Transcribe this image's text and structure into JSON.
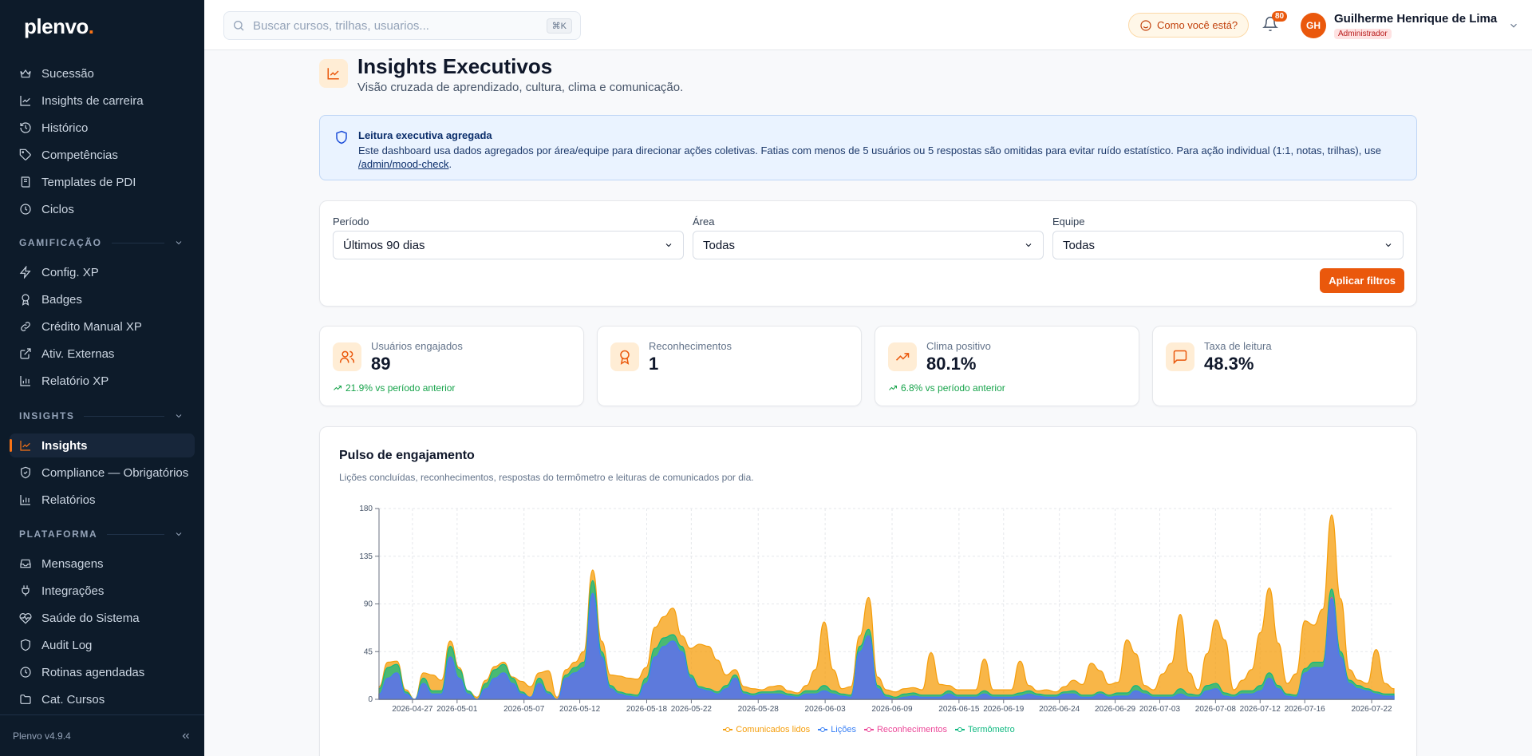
{
  "app": {
    "logo_main": "plenvo",
    "logo_dot": ".",
    "version": "Plenvo v4.9.4"
  },
  "sidebar": {
    "items_top": [
      {
        "label": "Sucessão",
        "icon": "crown-icon"
      },
      {
        "label": "Insights de carreira",
        "icon": "line-chart-icon"
      },
      {
        "label": "Histórico",
        "icon": "history-icon"
      },
      {
        "label": "Competências",
        "icon": "tag-icon"
      },
      {
        "label": "Templates de PDI",
        "icon": "book-icon"
      },
      {
        "label": "Ciclos",
        "icon": "clock-icon"
      }
    ],
    "gamificacao": {
      "title": "GAMIFICAÇÃO",
      "items": [
        {
          "label": "Config. XP",
          "icon": "zap-icon"
        },
        {
          "label": "Badges",
          "icon": "award-icon"
        },
        {
          "label": "Crédito Manual XP",
          "icon": "link-icon"
        },
        {
          "label": "Ativ. Externas",
          "icon": "external-link-icon"
        },
        {
          "label": "Relatório XP",
          "icon": "bar-chart-icon"
        }
      ]
    },
    "insights": {
      "title": "INSIGHTS",
      "items": [
        {
          "label": "Insights",
          "icon": "line-chart-icon",
          "active": true
        },
        {
          "label": "Compliance — Obrigatórios",
          "icon": "shield-check-icon"
        },
        {
          "label": "Relatórios",
          "icon": "bar-chart-icon"
        }
      ]
    },
    "plataforma": {
      "title": "PLATAFORMA",
      "items": [
        {
          "label": "Mensagens",
          "icon": "inbox-icon"
        },
        {
          "label": "Integrações",
          "icon": "plug-icon"
        },
        {
          "label": "Saúde do Sistema",
          "icon": "heart-pulse-icon"
        },
        {
          "label": "Audit Log",
          "icon": "shield-icon"
        },
        {
          "label": "Rotinas agendadas",
          "icon": "clock-icon"
        },
        {
          "label": "Cat. Cursos",
          "icon": "folder-icon"
        }
      ]
    }
  },
  "topbar": {
    "search_placeholder": "Buscar cursos, trilhas, usuarios...",
    "search_shortcut": "⌘K",
    "mood_label": "Como você está?",
    "notifications_count": "80",
    "user_initials": "GH",
    "user_name": "Guilherme Henrique de Lima",
    "user_role": "Administrador"
  },
  "page": {
    "title": "Insights Executivos",
    "subtitle": "Visão cruzada de aprendizado, cultura, clima e comunicação."
  },
  "info": {
    "title": "Leitura executiva agregada",
    "text": "Este dashboard usa dados agregados por área/equipe para direcionar ações coletivas. Fatias com menos de 5 usuários ou 5 respostas são omitidas para evitar ruído estatístico. Para ação individual (1:1, notas, trilhas), use ",
    "link": "/admin/mood-check",
    "end": "."
  },
  "filters": {
    "periodo_label": "Período",
    "periodo_value": "Últimos 90 dias",
    "area_label": "Área",
    "area_value": "Todas",
    "equipe_label": "Equipe",
    "equipe_value": "Todas",
    "apply_label": "Aplicar filtros"
  },
  "kpis": [
    {
      "label": "Usuários engajados",
      "value": "89",
      "delta": "21.9% vs período anterior",
      "icon": "users-icon"
    },
    {
      "label": "Reconhecimentos",
      "value": "1",
      "delta": "",
      "icon": "award-icon"
    },
    {
      "label": "Clima positivo",
      "value": "80.1%",
      "delta": "6.8% vs período anterior",
      "icon": "trending-up-icon"
    },
    {
      "label": "Taxa de leitura",
      "value": "48.3%",
      "delta": "",
      "icon": "message-square-icon"
    }
  ],
  "colors": {
    "accent": "#ea580c",
    "comunicados": "#f59e0b",
    "licoes": "#3b82f6",
    "reconhecimentos": "#ec4899",
    "termometro": "#10b981"
  },
  "chart_data": {
    "type": "area",
    "title": "Pulso de engajamento",
    "subtitle": "Lições concluídas, reconhecimentos, respostas do termômetro e leituras de comunicados por dia.",
    "stacked": true,
    "x_start": "2026-04-24",
    "x_end": "2026-07-24",
    "x_ticks": [
      "2026-04-27",
      "2026-05-01",
      "2026-05-07",
      "2026-05-12",
      "2026-05-18",
      "2026-05-22",
      "2026-05-28",
      "2026-06-03",
      "2026-06-09",
      "2026-06-15",
      "2026-06-19",
      "2026-06-24",
      "2026-06-29",
      "2026-07-03",
      "2026-07-08",
      "2026-07-12",
      "2026-07-16",
      "2026-07-22"
    ],
    "ylim": [
      0,
      180
    ],
    "y_ticks": [
      0,
      45,
      90,
      135,
      180
    ],
    "grid": true,
    "legend_position": "bottom-center",
    "series": [
      {
        "name": "Lições",
        "color": "#3b82f6",
        "values": [
          5,
          20,
          25,
          5,
          0,
          15,
          5,
          5,
          40,
          20,
          5,
          0,
          10,
          20,
          25,
          15,
          5,
          2,
          15,
          5,
          0,
          20,
          25,
          30,
          100,
          40,
          10,
          5,
          3,
          2,
          15,
          40,
          50,
          55,
          45,
          20,
          10,
          8,
          5,
          10,
          20,
          5,
          3,
          5,
          5,
          5,
          3,
          2,
          5,
          5,
          8,
          5,
          3,
          2,
          45,
          60,
          10,
          2,
          0,
          2,
          3,
          2,
          2,
          2,
          5,
          2,
          2,
          2,
          5,
          2,
          2,
          2,
          3,
          5,
          3,
          2,
          2,
          5,
          5,
          2,
          2,
          5,
          2,
          3,
          3,
          8,
          5,
          2,
          2,
          2,
          5,
          2,
          2,
          8,
          10,
          3,
          2,
          5,
          5,
          8,
          20,
          10,
          3,
          2,
          25,
          30,
          30,
          95,
          40,
          15,
          10,
          8,
          5,
          3,
          3
        ]
      },
      {
        "name": "Reconhecimentos",
        "color": "#ec4899",
        "values": [
          0,
          0,
          0,
          0,
          0,
          0,
          0,
          0,
          0,
          0,
          0,
          0,
          0,
          0,
          0,
          0,
          0,
          0,
          0,
          0,
          0,
          0,
          0,
          0,
          0,
          0,
          0,
          0,
          0,
          0,
          0,
          0,
          0,
          0,
          0,
          0,
          0,
          0,
          0,
          0,
          0,
          0,
          0,
          0,
          0,
          0,
          0,
          0,
          0,
          0,
          0,
          0,
          0,
          0,
          0,
          0,
          0,
          0,
          0,
          0,
          0,
          0,
          0,
          0,
          0,
          0,
          0,
          0,
          0,
          0,
          0,
          0,
          0,
          0,
          0,
          0,
          0,
          0,
          0,
          0,
          0,
          0,
          0,
          0,
          0,
          0,
          0,
          0,
          0,
          0,
          0,
          0,
          0,
          0,
          0,
          0,
          0,
          0,
          0,
          0,
          0,
          0,
          0,
          0,
          0,
          0,
          0,
          1,
          0,
          0,
          0,
          0,
          0,
          0,
          0
        ]
      },
      {
        "name": "Termômetro",
        "color": "#10b981",
        "values": [
          5,
          10,
          8,
          2,
          0,
          5,
          3,
          3,
          10,
          8,
          3,
          0,
          5,
          8,
          8,
          5,
          2,
          0,
          5,
          2,
          0,
          3,
          5,
          5,
          12,
          5,
          3,
          2,
          2,
          2,
          5,
          8,
          8,
          6,
          5,
          3,
          2,
          2,
          2,
          3,
          3,
          2,
          2,
          2,
          2,
          3,
          2,
          2,
          3,
          3,
          5,
          3,
          2,
          2,
          5,
          6,
          3,
          2,
          2,
          3,
          3,
          2,
          2,
          2,
          3,
          2,
          2,
          2,
          3,
          2,
          2,
          2,
          3,
          3,
          2,
          2,
          2,
          2,
          3,
          2,
          2,
          2,
          2,
          3,
          3,
          5,
          3,
          2,
          2,
          2,
          5,
          3,
          2,
          5,
          5,
          3,
          2,
          3,
          3,
          5,
          5,
          3,
          2,
          2,
          4,
          5,
          5,
          8,
          5,
          3,
          3,
          2,
          2,
          2,
          2
        ]
      },
      {
        "name": "Comunicados lidos",
        "color": "#f59e0b",
        "values": [
          2,
          5,
          3,
          2,
          0,
          5,
          15,
          10,
          5,
          2,
          0,
          2,
          3,
          3,
          2,
          1,
          10,
          10,
          5,
          20,
          2,
          5,
          5,
          10,
          10,
          10,
          10,
          15,
          15,
          15,
          10,
          20,
          20,
          25,
          10,
          25,
          40,
          40,
          30,
          10,
          5,
          5,
          5,
          2,
          5,
          5,
          3,
          2,
          5,
          20,
          60,
          20,
          5,
          8,
          10,
          30,
          8,
          5,
          5,
          5,
          5,
          5,
          40,
          10,
          5,
          5,
          5,
          5,
          30,
          5,
          5,
          5,
          30,
          5,
          3,
          5,
          3,
          5,
          10,
          10,
          30,
          20,
          10,
          10,
          50,
          30,
          5,
          5,
          20,
          30,
          70,
          20,
          5,
          30,
          60,
          50,
          5,
          10,
          20,
          50,
          80,
          40,
          10,
          20,
          45,
          35,
          50,
          70,
          50,
          10,
          5,
          5,
          40,
          10,
          5
        ]
      },
      {
        "name": "_order",
        "values": []
      }
    ]
  }
}
